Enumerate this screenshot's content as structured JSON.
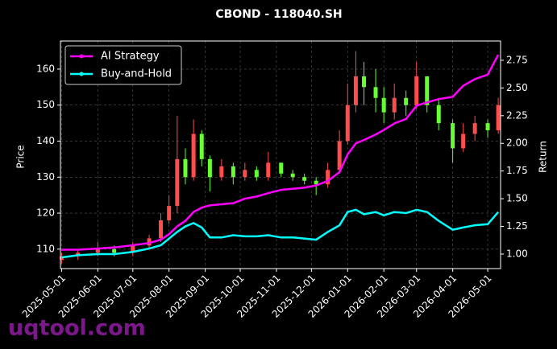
{
  "chart_data": {
    "type": "candlestick",
    "title": "CBOND - 118040.SH",
    "ylabel": "Price",
    "y2label": "Return",
    "watermark": "uqtool.com",
    "x": [
      "2025-05-01",
      "2025-05-15",
      "2025-06-01",
      "2025-06-15",
      "2025-07-01",
      "2025-07-15",
      "2025-07-25",
      "2025-08-01",
      "2025-08-08",
      "2025-08-15",
      "2025-08-22",
      "2025-08-29",
      "2025-09-05",
      "2025-09-15",
      "2025-09-25",
      "2025-10-05",
      "2025-10-15",
      "2025-10-25",
      "2025-11-05",
      "2025-11-15",
      "2025-11-25",
      "2025-12-05",
      "2025-12-15",
      "2025-12-25",
      "2026-01-01",
      "2026-01-08",
      "2026-01-15",
      "2026-01-25",
      "2026-02-01",
      "2026-02-10",
      "2026-02-20",
      "2026-03-01",
      "2026-03-10",
      "2026-03-20",
      "2026-04-01",
      "2026-04-10",
      "2026-04-20",
      "2026-05-01",
      "2026-05-10"
    ],
    "open": [
      107,
      108,
      109,
      110,
      109,
      111,
      113,
      118,
      122,
      135,
      130,
      142,
      135,
      130,
      133,
      130,
      132,
      130,
      134,
      131,
      130,
      129,
      128,
      132,
      140,
      150,
      158,
      155,
      152,
      148,
      152,
      150,
      158,
      150,
      145,
      138,
      142,
      145,
      143
    ],
    "high": [
      109,
      110,
      112,
      111,
      112,
      114,
      120,
      125,
      147,
      138,
      146,
      143,
      136,
      135,
      134,
      134,
      133,
      137,
      134,
      132,
      131,
      130,
      134,
      143,
      156,
      165,
      162,
      160,
      155,
      156,
      154,
      162,
      158,
      152,
      146,
      145,
      147,
      146,
      152
    ],
    "low": [
      106,
      107,
      108,
      108,
      108,
      110,
      112,
      117,
      120,
      128,
      129,
      133,
      126,
      129,
      128,
      129,
      129,
      129,
      130,
      129,
      128,
      125,
      127,
      131,
      139,
      148,
      150,
      148,
      145,
      146,
      147,
      149,
      148,
      143,
      134,
      137,
      140,
      141,
      142
    ],
    "close": [
      108,
      109,
      110,
      109,
      111,
      113,
      118,
      122,
      135,
      130,
      142,
      135,
      130,
      133,
      130,
      132,
      130,
      134,
      131,
      130,
      129,
      128,
      132,
      140,
      150,
      158,
      155,
      152,
      148,
      152,
      150,
      158,
      150,
      145,
      138,
      142,
      145,
      143,
      150
    ],
    "up_color": "#ff4d4d",
    "down_color": "#66ff33",
    "series": [
      {
        "name": "AI Strategy",
        "color": "#ff00ff",
        "axis": "y2",
        "values": [
          1.04,
          1.04,
          1.05,
          1.06,
          1.08,
          1.1,
          1.13,
          1.18,
          1.25,
          1.3,
          1.38,
          1.42,
          1.44,
          1.45,
          1.46,
          1.5,
          1.52,
          1.55,
          1.58,
          1.59,
          1.6,
          1.62,
          1.66,
          1.74,
          1.9,
          2.0,
          2.03,
          2.08,
          2.12,
          2.18,
          2.22,
          2.34,
          2.37,
          2.4,
          2.42,
          2.52,
          2.58,
          2.62,
          2.8
        ]
      },
      {
        "name": "Buy-and-Hold",
        "color": "#00ffff",
        "axis": "y2",
        "values": [
          0.97,
          0.99,
          1.0,
          1.0,
          1.02,
          1.05,
          1.08,
          1.14,
          1.2,
          1.25,
          1.28,
          1.24,
          1.15,
          1.15,
          1.17,
          1.16,
          1.16,
          1.17,
          1.15,
          1.15,
          1.14,
          1.13,
          1.2,
          1.26,
          1.38,
          1.4,
          1.36,
          1.38,
          1.35,
          1.38,
          1.37,
          1.4,
          1.38,
          1.3,
          1.22,
          1.24,
          1.26,
          1.27,
          1.38
        ]
      }
    ],
    "xlim": [
      "2025-04-30",
      "2026-05-12"
    ],
    "xticks": [
      "2025-05-01",
      "2025-06-01",
      "2025-07-01",
      "2025-08-01",
      "2025-09-01",
      "2025-10-01",
      "2025-11-01",
      "2025-12-01",
      "2026-01-01",
      "2026-02-01",
      "2026-03-01",
      "2026-04-01",
      "2026-05-01"
    ],
    "ylim": [
      104.6,
      167.8
    ],
    "yticks": [
      110,
      120,
      130,
      140,
      150,
      160
    ],
    "y2lim": [
      0.869,
      2.924
    ],
    "y2ticks": [
      {
        "value": 1,
        "label": "1.00"
      },
      1.25,
      {
        "value": 1.5,
        "label": "1.50"
      },
      1.75,
      {
        "value": 2,
        "label": "2.00"
      },
      2.25,
      {
        "value": 2.5,
        "label": "2.50"
      },
      2.75
    ],
    "grid": true,
    "legend": "upper left"
  }
}
